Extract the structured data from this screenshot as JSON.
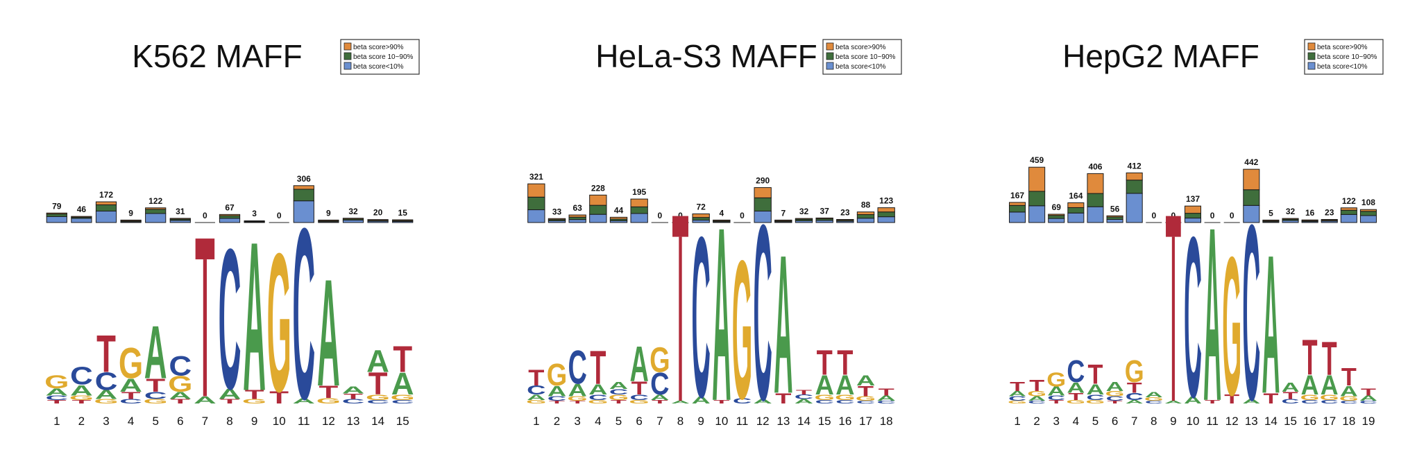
{
  "colors": {
    "A": "#4a9a4c",
    "C": "#2a4a9a",
    "G": "#e0aa2e",
    "T": "#b02a3a",
    "beta_high": "#e08a3c",
    "beta_mid": "#3f6e3c",
    "beta_low": "#6a8fd0"
  },
  "legend": {
    "high": "beta score>90%",
    "mid": "beta score 10~90%",
    "low": "beta score<10%"
  },
  "chart_data": [
    {
      "type": "bar",
      "title": "K562 MAFF",
      "categories": [
        "1",
        "2",
        "3",
        "4",
        "5",
        "6",
        "7",
        "8",
        "9",
        "10",
        "11",
        "12",
        "13",
        "14",
        "15"
      ],
      "totals": [
        79,
        46,
        172,
        9,
        122,
        31,
        0,
        67,
        3,
        0,
        306,
        9,
        32,
        20,
        15
      ],
      "series": [
        {
          "name": "beta score>90%",
          "values": [
            8,
            2,
            25,
            1,
            12,
            3,
            0,
            10,
            0,
            0,
            30,
            1,
            3,
            2,
            1
          ]
        },
        {
          "name": "beta score 10~90%",
          "values": [
            21,
            9,
            52,
            3,
            35,
            10,
            0,
            22,
            1,
            0,
            96,
            3,
            9,
            7,
            5
          ]
        },
        {
          "name": "beta score<10%",
          "values": [
            50,
            35,
            95,
            5,
            75,
            18,
            0,
            35,
            2,
            0,
            180,
            5,
            20,
            11,
            9
          ]
        }
      ],
      "ylim": [
        0,
        460
      ],
      "motif": [
        {
          "G": 0.15,
          "A": 0.08,
          "C": 0.05,
          "T": 0.04
        },
        {
          "C": 0.2,
          "A": 0.12,
          "G": 0.05,
          "T": 0.04
        },
        {
          "T": 0.42,
          "C": 0.2,
          "A": 0.1,
          "G": 0.05
        },
        {
          "G": 0.35,
          "A": 0.15,
          "T": 0.08,
          "C": 0.05
        },
        {
          "A": 0.6,
          "T": 0.15,
          "C": 0.08,
          "G": 0.05
        },
        {
          "C": 0.22,
          "G": 0.18,
          "A": 0.08,
          "T": 0.05
        },
        {
          "T": 1.75,
          "A": 0.08
        },
        {
          "C": 1.6,
          "A": 0.12,
          "T": 0.05
        },
        {
          "A": 1.7,
          "T": 0.1,
          "G": 0.05
        },
        {
          "G": 1.58,
          "T": 0.14
        },
        {
          "C": 1.95,
          "A": 0.06
        },
        {
          "A": 1.22,
          "T": 0.14,
          "G": 0.06
        },
        {
          "A": 0.08,
          "T": 0.06,
          "C": 0.05
        },
        {
          "T": 0.25,
          "A": 0.25,
          "G": 0.06,
          "C": 0.04
        },
        {
          "T": 0.3,
          "A": 0.25,
          "G": 0.06,
          "C": 0.04
        }
      ]
    },
    {
      "type": "bar",
      "title": "HeLa-S3 MAFF",
      "categories": [
        "1",
        "2",
        "3",
        "4",
        "5",
        "6",
        "7",
        "8",
        "9",
        "10",
        "11",
        "12",
        "13",
        "14",
        "15",
        "16",
        "17",
        "18"
      ],
      "totals": [
        321,
        33,
        63,
        228,
        44,
        195,
        0,
        0,
        72,
        4,
        0,
        290,
        7,
        32,
        37,
        23,
        88,
        123
      ],
      "series": [
        {
          "name": "beta score>90%",
          "values": [
            110,
            8,
            18,
            85,
            15,
            65,
            0,
            0,
            30,
            1,
            0,
            85,
            1,
            5,
            6,
            4,
            22,
            35
          ]
        },
        {
          "name": "beta score 10~90%",
          "values": [
            105,
            10,
            20,
            75,
            14,
            55,
            0,
            0,
            22,
            1,
            0,
            110,
            2,
            12,
            13,
            8,
            30,
            40
          ]
        },
        {
          "name": "beta score<10%",
          "values": [
            106,
            15,
            25,
            68,
            15,
            75,
            0,
            0,
            20,
            2,
            0,
            95,
            4,
            15,
            18,
            11,
            36,
            48
          ]
        }
      ],
      "ylim": [
        0,
        460
      ],
      "motif": [
        {
          "T": 0.18,
          "C": 0.1,
          "A": 0.06,
          "G": 0.04
        },
        {
          "G": 0.25,
          "A": 0.12,
          "C": 0.05,
          "T": 0.03
        },
        {
          "C": 0.38,
          "A": 0.14,
          "G": 0.05,
          "T": 0.03
        },
        {
          "T": 0.38,
          "A": 0.12,
          "C": 0.06,
          "G": 0.04
        },
        {
          "A": 0.08,
          "G": 0.06,
          "C": 0.06,
          "T": 0.04
        },
        {
          "A": 0.4,
          "T": 0.15,
          "C": 0.06,
          "G": 0.04
        },
        {
          "G": 0.28,
          "C": 0.25,
          "A": 0.06,
          "T": 0.04
        },
        {
          "T": 2.05,
          "A": 0.03
        },
        {
          "C": 1.83,
          "A": 0.08
        },
        {
          "A": 1.98,
          "T": 0.04
        },
        {
          "G": 1.58,
          "C": 0.06
        },
        {
          "C": 2.0,
          "A": 0.05
        },
        {
          "A": 1.58,
          "T": 0.12
        },
        {
          "A": 0.05,
          "C": 0.05,
          "T": 0.05
        },
        {
          "T": 0.28,
          "A": 0.22,
          "G": 0.06,
          "C": 0.04
        },
        {
          "T": 0.28,
          "A": 0.22,
          "G": 0.06,
          "C": 0.04
        },
        {
          "T": 0.12,
          "A": 0.12,
          "G": 0.05,
          "C": 0.03
        },
        {
          "T": 0.08,
          "A": 0.06,
          "C": 0.03
        }
      ]
    },
    {
      "type": "bar",
      "title": "HepG2 MAFF",
      "categories": [
        "1",
        "2",
        "3",
        "4",
        "5",
        "6",
        "7",
        "8",
        "9",
        "10",
        "11",
        "12",
        "13",
        "14",
        "15",
        "16",
        "17",
        "18",
        "19"
      ],
      "totals": [
        167,
        459,
        69,
        164,
        406,
        56,
        412,
        0,
        0,
        137,
        0,
        0,
        442,
        5,
        32,
        16,
        23,
        122,
        108
      ],
      "series": [
        {
          "name": "beta score>90%",
          "values": [
            25,
            200,
            10,
            40,
            165,
            10,
            60,
            0,
            0,
            60,
            0,
            0,
            170,
            1,
            5,
            3,
            4,
            20,
            15
          ]
        },
        {
          "name": "beta score 10~90%",
          "values": [
            55,
            120,
            25,
            45,
            110,
            20,
            110,
            0,
            0,
            40,
            0,
            0,
            130,
            1,
            10,
            5,
            7,
            35,
            35
          ]
        },
        {
          "name": "beta score<10%",
          "values": [
            87,
            139,
            34,
            79,
            131,
            26,
            242,
            0,
            0,
            37,
            0,
            0,
            142,
            3,
            17,
            8,
            12,
            67,
            58
          ]
        }
      ],
      "ylim": [
        0,
        460
      ],
      "motif": [
        {
          "T": 0.1,
          "A": 0.06,
          "C": 0.05,
          "G": 0.03
        },
        {
          "T": 0.13,
          "G": 0.06,
          "A": 0.05,
          "C": 0.03
        },
        {
          "G": 0.16,
          "A": 0.1,
          "C": 0.05,
          "T": 0.04
        },
        {
          "C": 0.25,
          "A": 0.12,
          "T": 0.08,
          "G": 0.04
        },
        {
          "T": 0.22,
          "A": 0.12,
          "C": 0.06,
          "G": 0.04
        },
        {
          "A": 0.1,
          "G": 0.06,
          "C": 0.05,
          "T": 0.03
        },
        {
          "G": 0.25,
          "T": 0.12,
          "C": 0.08,
          "A": 0.04
        },
        {
          "A": 0.06,
          "G": 0.04,
          "C": 0.03
        },
        {
          "T": 2.05,
          "A": 0.03
        },
        {
          "C": 1.83,
          "A": 0.08
        },
        {
          "A": 1.98,
          "T": 0.04
        },
        {
          "G": 1.58,
          "T": 0.1
        },
        {
          "C": 2.0,
          "A": 0.05
        },
        {
          "A": 1.58,
          "T": 0.12
        },
        {
          "A": 0.1,
          "T": 0.08,
          "C": 0.05
        },
        {
          "T": 0.4,
          "A": 0.22,
          "G": 0.06,
          "C": 0.04
        },
        {
          "T": 0.38,
          "A": 0.22,
          "G": 0.06,
          "C": 0.04
        },
        {
          "T": 0.2,
          "A": 0.12,
          "G": 0.05,
          "C": 0.03
        },
        {
          "T": 0.08,
          "A": 0.06,
          "C": 0.03
        }
      ]
    }
  ]
}
